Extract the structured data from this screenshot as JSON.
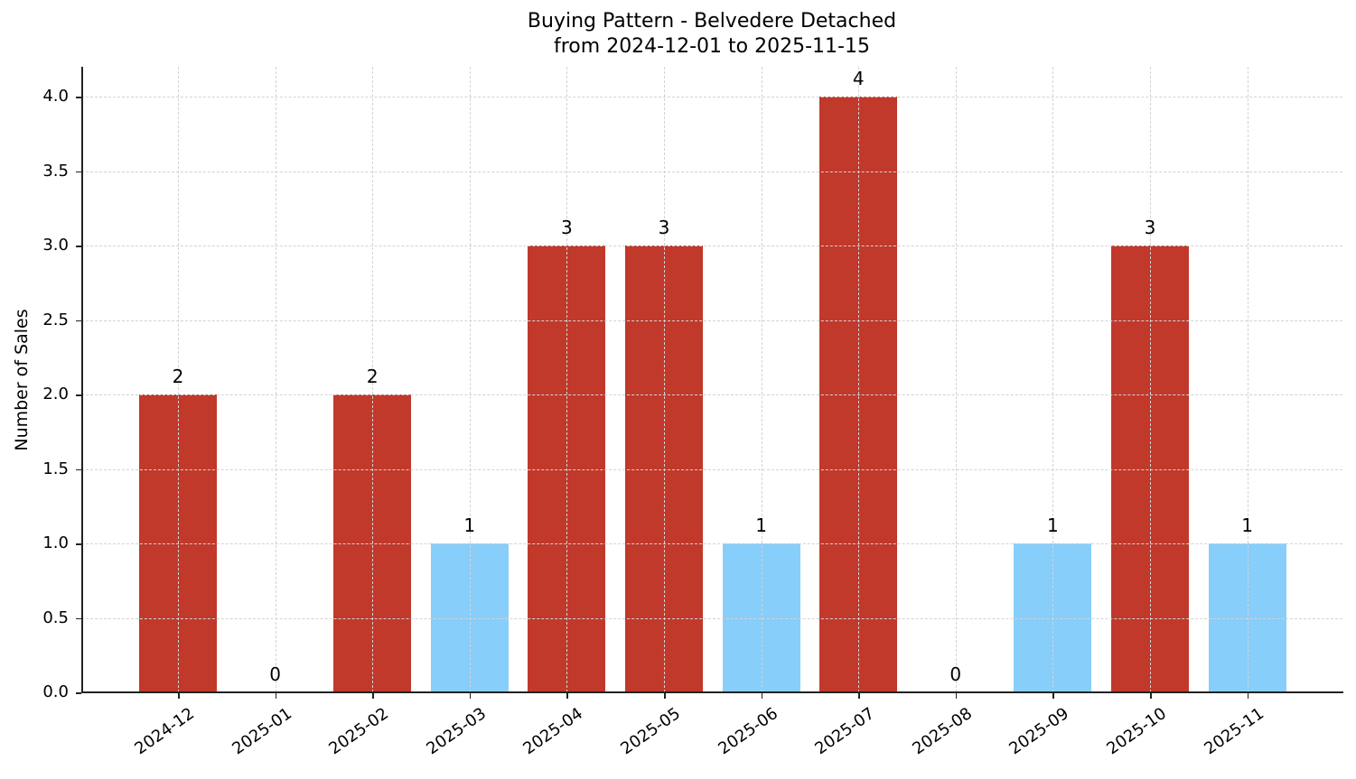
{
  "chart_data": {
    "type": "bar",
    "title": "Buying Pattern - Belvedere Detached",
    "subtitle": "from 2024-12-01 to 2025-11-15",
    "xlabel": "",
    "ylabel": "Number of Sales",
    "categories": [
      "2024-12",
      "2025-01",
      "2025-02",
      "2025-03",
      "2025-04",
      "2025-05",
      "2025-06",
      "2025-07",
      "2025-08",
      "2025-09",
      "2025-10",
      "2025-11"
    ],
    "values": [
      2,
      0,
      2,
      1,
      3,
      3,
      1,
      4,
      0,
      1,
      3,
      1
    ],
    "value_labels": [
      "2",
      "0",
      "2",
      "1",
      "3",
      "3",
      "1",
      "4",
      "0",
      "1",
      "3",
      "1"
    ],
    "bar_colors": [
      "#c0392b",
      "#c0392b",
      "#c0392b",
      "#87cefa",
      "#c0392b",
      "#c0392b",
      "#87cefa",
      "#c0392b",
      "#c0392b",
      "#87cefa",
      "#c0392b",
      "#87cefa"
    ],
    "colors": {
      "high": "#c0392b",
      "low": "#87cefa"
    },
    "ylim": [
      0,
      4.2
    ],
    "yticks": [
      "0.0",
      "0.5",
      "1.0",
      "1.5",
      "2.0",
      "2.5",
      "3.0",
      "3.5",
      "4.0"
    ],
    "grid": true,
    "legend": null
  }
}
